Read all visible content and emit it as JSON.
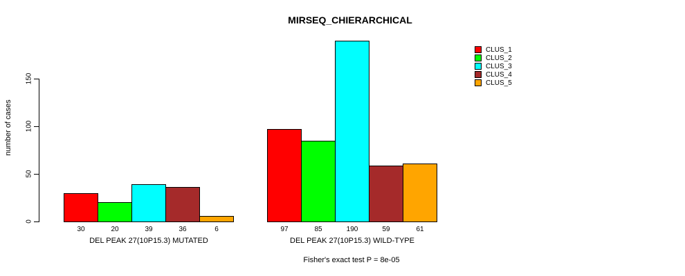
{
  "title": "MIRSEQ_CHIERARCHICAL",
  "y_axis": {
    "label": "number of cases",
    "ticks": [
      "0",
      "50",
      "100",
      "150"
    ]
  },
  "legend": {
    "items": [
      {
        "label": "CLUS_1",
        "color": "#FF0000"
      },
      {
        "label": "CLUS_2",
        "color": "#00FF00"
      },
      {
        "label": "CLUS_3",
        "color": "#00FFFF"
      },
      {
        "label": "CLUS_4",
        "color": "#A52A2A"
      },
      {
        "label": "CLUS_5",
        "color": "#FFA500"
      }
    ]
  },
  "footer": "Fisher's exact test P = 8e-05",
  "chart_data": {
    "type": "bar",
    "title": "MIRSEQ_CHIERARCHICAL",
    "xlabel": "",
    "ylabel": "number of cases",
    "ylim": [
      0,
      190
    ],
    "yticks": [
      0,
      50,
      100,
      150
    ],
    "grid": false,
    "legend_position": "right",
    "bar_value_labels": true,
    "categories": [
      "DEL PEAK 27(10P15.3) MUTATED",
      "DEL PEAK 27(10P15.3) WILD-TYPE"
    ],
    "series": [
      {
        "name": "CLUS_1",
        "color": "#FF0000",
        "values": [
          30,
          97
        ]
      },
      {
        "name": "CLUS_2",
        "color": "#00FF00",
        "values": [
          20,
          85
        ]
      },
      {
        "name": "CLUS_3",
        "color": "#00FFFF",
        "values": [
          39,
          190
        ]
      },
      {
        "name": "CLUS_4",
        "color": "#A52A2A",
        "values": [
          36,
          59
        ]
      },
      {
        "name": "CLUS_5",
        "color": "#FFA500",
        "values": [
          6,
          61
        ]
      }
    ],
    "annotation": "Fisher's exact test P = 8e-05"
  }
}
